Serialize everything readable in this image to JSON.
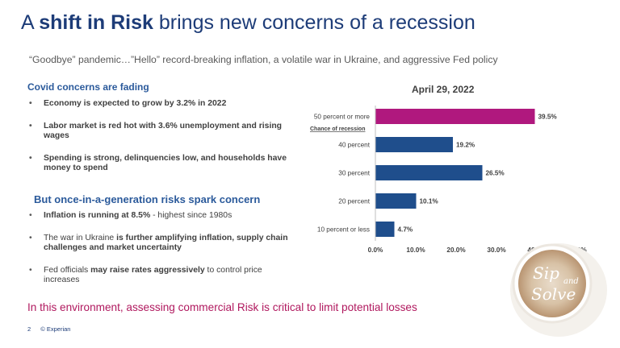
{
  "title": {
    "lead": "A ",
    "emphasis": "shift in Risk",
    "rest": " brings new concerns of a recession"
  },
  "subtitle": "“Goodbye” pandemic…”Hello” record-breaking inflation, a volatile war in Ukraine, and aggressive Fed policy",
  "section1": {
    "heading": "Covid concerns are fading",
    "bullets": [
      "Economy is expected to grow by 3.2% in 2022",
      "Labor market is red hot with 3.6% unemployment and rising wages",
      "Spending is strong, delinquencies low, and households have money to spend"
    ]
  },
  "section2": {
    "heading": "But once-in-a-generation risks spark concern",
    "bullets": [
      {
        "strong": "Inflation is running at 8.5%",
        "rest": " - highest  since 1980s"
      },
      {
        "pre": "The war in Ukraine ",
        "strong": "is further amplifying inflation, supply chain challenges and market uncertainty"
      },
      {
        "pre": "Fed officials ",
        "strong": "may raise rates aggressively",
        "rest": " to control price increases"
      }
    ]
  },
  "bottom_message": "In this environment, assessing commercial Risk is critical to limit potential losses",
  "footer": {
    "page": "2",
    "brand": "© Experian"
  },
  "badge": {
    "line1": "Sip",
    "line2": "and",
    "line3": "Solve"
  },
  "colors": {
    "title": "#1d3c78",
    "bar": "#1f4e8c",
    "highlight": "#b0187e",
    "accent_text": "#b0185e"
  },
  "chart_data": {
    "type": "bar",
    "orientation": "horizontal",
    "title": "April 29, 2022",
    "category_note": "Chance of recession",
    "categories": [
      "50 percent or more",
      "40 percent",
      "30 percent",
      "20 percent",
      "10 percent or less"
    ],
    "values": [
      39.5,
      19.2,
      26.5,
      10.1,
      4.7
    ],
    "value_labels": [
      "39.5%",
      "19.2%",
      "26.5%",
      "10.1%",
      "4.7%"
    ],
    "highlight_index": 0,
    "xlim": [
      0,
      50
    ],
    "xticks": [
      "0.0%",
      "10.0%",
      "20.0%",
      "30.0%",
      "40.0%",
      "50.0%"
    ],
    "grid": false
  }
}
